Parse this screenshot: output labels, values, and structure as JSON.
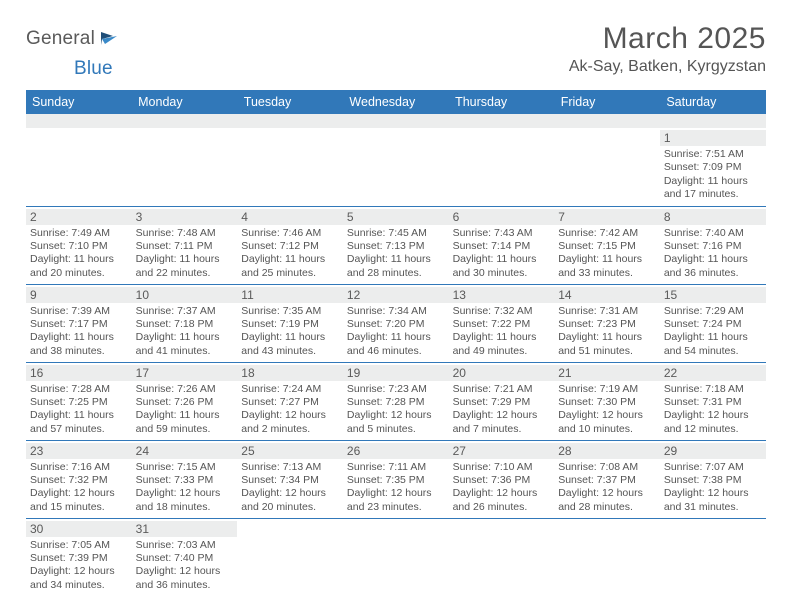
{
  "brand": {
    "text1": "General",
    "text2": "Blue"
  },
  "title": "March 2025",
  "location": "Ak-Say, Batken, Kyrgyzstan",
  "colors": {
    "header_bg": "#3178b9",
    "header_text": "#ffffff",
    "daynum_bg": "#eceded",
    "border": "#3178b9",
    "text": "#555555"
  },
  "weekdays": [
    "Sunday",
    "Monday",
    "Tuesday",
    "Wednesday",
    "Thursday",
    "Friday",
    "Saturday"
  ],
  "weeks": [
    [
      null,
      null,
      null,
      null,
      null,
      null,
      {
        "n": "1",
        "sr": "7:51 AM",
        "ss": "7:09 PM",
        "dl": "11 hours and 17 minutes."
      }
    ],
    [
      {
        "n": "2",
        "sr": "7:49 AM",
        "ss": "7:10 PM",
        "dl": "11 hours and 20 minutes."
      },
      {
        "n": "3",
        "sr": "7:48 AM",
        "ss": "7:11 PM",
        "dl": "11 hours and 22 minutes."
      },
      {
        "n": "4",
        "sr": "7:46 AM",
        "ss": "7:12 PM",
        "dl": "11 hours and 25 minutes."
      },
      {
        "n": "5",
        "sr": "7:45 AM",
        "ss": "7:13 PM",
        "dl": "11 hours and 28 minutes."
      },
      {
        "n": "6",
        "sr": "7:43 AM",
        "ss": "7:14 PM",
        "dl": "11 hours and 30 minutes."
      },
      {
        "n": "7",
        "sr": "7:42 AM",
        "ss": "7:15 PM",
        "dl": "11 hours and 33 minutes."
      },
      {
        "n": "8",
        "sr": "7:40 AM",
        "ss": "7:16 PM",
        "dl": "11 hours and 36 minutes."
      }
    ],
    [
      {
        "n": "9",
        "sr": "7:39 AM",
        "ss": "7:17 PM",
        "dl": "11 hours and 38 minutes."
      },
      {
        "n": "10",
        "sr": "7:37 AM",
        "ss": "7:18 PM",
        "dl": "11 hours and 41 minutes."
      },
      {
        "n": "11",
        "sr": "7:35 AM",
        "ss": "7:19 PM",
        "dl": "11 hours and 43 minutes."
      },
      {
        "n": "12",
        "sr": "7:34 AM",
        "ss": "7:20 PM",
        "dl": "11 hours and 46 minutes."
      },
      {
        "n": "13",
        "sr": "7:32 AM",
        "ss": "7:22 PM",
        "dl": "11 hours and 49 minutes."
      },
      {
        "n": "14",
        "sr": "7:31 AM",
        "ss": "7:23 PM",
        "dl": "11 hours and 51 minutes."
      },
      {
        "n": "15",
        "sr": "7:29 AM",
        "ss": "7:24 PM",
        "dl": "11 hours and 54 minutes."
      }
    ],
    [
      {
        "n": "16",
        "sr": "7:28 AM",
        "ss": "7:25 PM",
        "dl": "11 hours and 57 minutes."
      },
      {
        "n": "17",
        "sr": "7:26 AM",
        "ss": "7:26 PM",
        "dl": "11 hours and 59 minutes."
      },
      {
        "n": "18",
        "sr": "7:24 AM",
        "ss": "7:27 PM",
        "dl": "12 hours and 2 minutes."
      },
      {
        "n": "19",
        "sr": "7:23 AM",
        "ss": "7:28 PM",
        "dl": "12 hours and 5 minutes."
      },
      {
        "n": "20",
        "sr": "7:21 AM",
        "ss": "7:29 PM",
        "dl": "12 hours and 7 minutes."
      },
      {
        "n": "21",
        "sr": "7:19 AM",
        "ss": "7:30 PM",
        "dl": "12 hours and 10 minutes."
      },
      {
        "n": "22",
        "sr": "7:18 AM",
        "ss": "7:31 PM",
        "dl": "12 hours and 12 minutes."
      }
    ],
    [
      {
        "n": "23",
        "sr": "7:16 AM",
        "ss": "7:32 PM",
        "dl": "12 hours and 15 minutes."
      },
      {
        "n": "24",
        "sr": "7:15 AM",
        "ss": "7:33 PM",
        "dl": "12 hours and 18 minutes."
      },
      {
        "n": "25",
        "sr": "7:13 AM",
        "ss": "7:34 PM",
        "dl": "12 hours and 20 minutes."
      },
      {
        "n": "26",
        "sr": "7:11 AM",
        "ss": "7:35 PM",
        "dl": "12 hours and 23 minutes."
      },
      {
        "n": "27",
        "sr": "7:10 AM",
        "ss": "7:36 PM",
        "dl": "12 hours and 26 minutes."
      },
      {
        "n": "28",
        "sr": "7:08 AM",
        "ss": "7:37 PM",
        "dl": "12 hours and 28 minutes."
      },
      {
        "n": "29",
        "sr": "7:07 AM",
        "ss": "7:38 PM",
        "dl": "12 hours and 31 minutes."
      }
    ],
    [
      {
        "n": "30",
        "sr": "7:05 AM",
        "ss": "7:39 PM",
        "dl": "12 hours and 34 minutes."
      },
      {
        "n": "31",
        "sr": "7:03 AM",
        "ss": "7:40 PM",
        "dl": "12 hours and 36 minutes."
      },
      null,
      null,
      null,
      null,
      null
    ]
  ],
  "labels": {
    "sunrise": "Sunrise: ",
    "sunset": "Sunset: ",
    "daylight": "Daylight: "
  }
}
